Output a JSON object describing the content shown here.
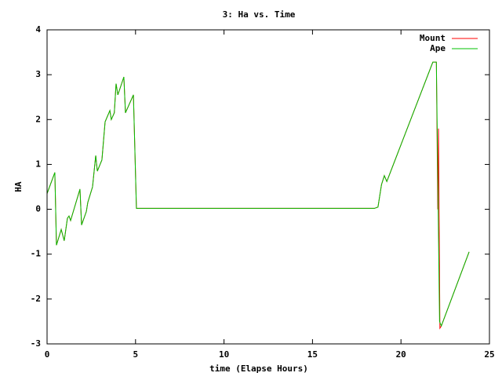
{
  "chart_data": {
    "type": "line",
    "title": "3: Ha vs. Time",
    "xlabel": "time (Elapse Hours)",
    "ylabel": "HA",
    "xlim": [
      0,
      25
    ],
    "xticks": [
      0,
      5,
      10,
      15,
      20,
      25
    ],
    "ylim": [
      -3,
      4
    ],
    "yticks": [
      -3,
      -2,
      -1,
      0,
      1,
      2,
      3,
      4
    ],
    "legend": "upper right",
    "series": [
      {
        "name": "Mount",
        "color": "#ff0000",
        "x": [
          0,
          0.44,
          0.53,
          0.8,
          0.97,
          1.15,
          1.24,
          1.33,
          1.86,
          1.95,
          2.22,
          2.3,
          2.57,
          2.75,
          2.84,
          3.1,
          3.28,
          3.55,
          3.63,
          3.8,
          3.9,
          4.0,
          4.34,
          4.43,
          4.88,
          5.05,
          18.5,
          18.7,
          18.9,
          19.06,
          19.2,
          21.8,
          22.0,
          22.08,
          22.12,
          22.2,
          22.28,
          23.85
        ],
        "values": [
          0.35,
          0.82,
          -0.8,
          -0.45,
          -0.7,
          -0.2,
          -0.15,
          -0.25,
          0.45,
          -0.35,
          -0.05,
          0.15,
          0.5,
          1.2,
          0.85,
          1.1,
          1.95,
          2.2,
          2.0,
          2.15,
          2.8,
          2.55,
          2.95,
          2.15,
          2.55,
          0.02,
          0.02,
          0.05,
          0.55,
          0.75,
          0.62,
          3.28,
          3.28,
          0,
          1.8,
          -2.65,
          -2.6,
          -0.95
        ]
      },
      {
        "name": "Ape",
        "color": "#00c000",
        "x": [
          0,
          0.44,
          0.53,
          0.8,
          0.97,
          1.15,
          1.24,
          1.33,
          1.86,
          1.95,
          2.22,
          2.3,
          2.57,
          2.75,
          2.84,
          3.1,
          3.28,
          3.55,
          3.63,
          3.8,
          3.9,
          4.0,
          4.34,
          4.43,
          4.88,
          5.05,
          18.5,
          18.7,
          18.9,
          19.06,
          19.2,
          21.8,
          22.0,
          22.18,
          22.28,
          23.85
        ],
        "values": [
          0.35,
          0.82,
          -0.8,
          -0.45,
          -0.7,
          -0.2,
          -0.15,
          -0.25,
          0.45,
          -0.35,
          -0.05,
          0.15,
          0.5,
          1.2,
          0.85,
          1.1,
          1.95,
          2.2,
          2.0,
          2.15,
          2.8,
          2.55,
          2.95,
          2.15,
          2.55,
          0.02,
          0.02,
          0.05,
          0.55,
          0.75,
          0.62,
          3.28,
          3.28,
          -2.5,
          -2.6,
          -0.95
        ]
      }
    ]
  }
}
